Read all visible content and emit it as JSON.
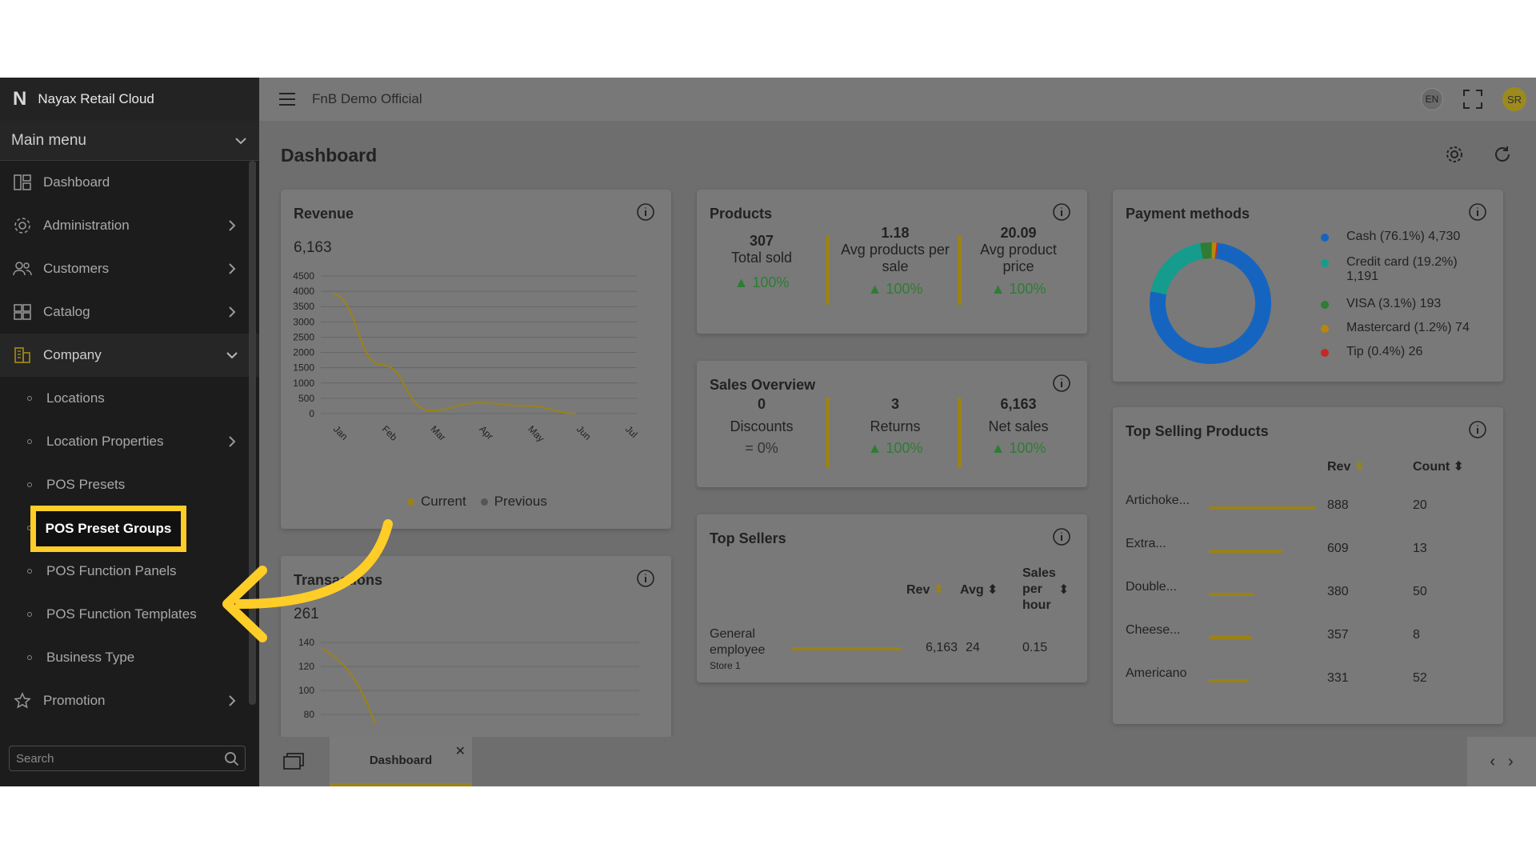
{
  "sidebar": {
    "app_name": "Nayax Retail Cloud",
    "main_menu": "Main menu",
    "items": [
      {
        "label": "Dashboard"
      },
      {
        "label": "Administration"
      },
      {
        "label": "Customers"
      },
      {
        "label": "Catalog"
      },
      {
        "label": "Company"
      }
    ],
    "company_sub": [
      {
        "label": "Locations"
      },
      {
        "label": "Location Properties"
      },
      {
        "label": "POS Presets"
      },
      {
        "label": "POS Preset Groups"
      },
      {
        "label": "POS Function Panels"
      },
      {
        "label": "POS Function Templates"
      },
      {
        "label": "Business Type"
      }
    ],
    "promotion": "Promotion",
    "search_placeholder": "Search"
  },
  "topbar": {
    "title": "FnB Demo Official",
    "lang": "EN",
    "avatar": "SR"
  },
  "page": {
    "title": "Dashboard"
  },
  "revenue": {
    "title": "Revenue",
    "total": "6,163",
    "legend_current": "Current",
    "legend_previous": "Previous",
    "yticks": [
      "4500",
      "4000",
      "3500",
      "3000",
      "2500",
      "2000",
      "1500",
      "1000",
      "500",
      "0"
    ],
    "xticks": [
      "Jan",
      "Feb",
      "Mar",
      "Apr",
      "May",
      "Jun",
      "Jul"
    ]
  },
  "chart_data": {
    "type": "line",
    "x": [
      "Jan",
      "Feb",
      "Mar",
      "Apr",
      "May",
      "Jun",
      "Jul"
    ],
    "series": [
      {
        "name": "Current",
        "values": [
          3900,
          1600,
          100,
          350,
          250,
          0,
          null
        ]
      }
    ],
    "ylim": [
      0,
      4500
    ]
  },
  "transactions": {
    "title": "Transactions",
    "total": "261",
    "yticks": [
      "140",
      "120",
      "100",
      "80"
    ]
  },
  "products": {
    "title": "Products",
    "kpis": [
      {
        "value": "307",
        "label": "Total sold",
        "pct": "100%"
      },
      {
        "value": "1.18",
        "label": "Avg products per sale",
        "pct": "100%"
      },
      {
        "value": "20.09",
        "label": "Avg product price",
        "pct": "100%"
      }
    ]
  },
  "sales": {
    "title": "Sales Overview",
    "kpis": [
      {
        "value": "0",
        "label": "Discounts",
        "pct": "0%"
      },
      {
        "value": "3",
        "label": "Returns",
        "pct": "100%"
      },
      {
        "value": "6,163",
        "label": "Net sales",
        "pct": "100%"
      }
    ]
  },
  "top_sellers": {
    "title": "Top Sellers",
    "headers": {
      "rev": "Rev",
      "avg": "Avg",
      "sph": "Sales per hour"
    },
    "rows": [
      {
        "name": "General employee",
        "store": "Store 1",
        "rev": "6,163",
        "avg": "24",
        "sph": "0.15"
      }
    ]
  },
  "payment": {
    "title": "Payment methods",
    "items": [
      {
        "label": "Cash (76.1%) 4,730",
        "color": "#1565c0",
        "share": 76.1
      },
      {
        "label": "Credit card (19.2%) 1,191",
        "color": "#159c8c",
        "share": 19.2
      },
      {
        "label": "VISA (3.1%) 193",
        "color": "#2e7d32",
        "share": 3.1
      },
      {
        "label": "Mastercard (1.2%) 74",
        "color": "#b8860b",
        "share": 1.2
      },
      {
        "label": "Tip (0.4%) 26",
        "color": "#c62828",
        "share": 0.4
      }
    ]
  },
  "top_products": {
    "title": "Top Selling Products",
    "headers": {
      "rev": "Rev",
      "count": "Count"
    },
    "rows": [
      {
        "name": "Artichoke...",
        "rev": "888",
        "count": "20",
        "share": 1.0
      },
      {
        "name": "Extra...",
        "rev": "609",
        "count": "13",
        "share": 0.686
      },
      {
        "name": "Double...",
        "rev": "380",
        "count": "50",
        "share": 0.428
      },
      {
        "name": "Cheese...",
        "rev": "357",
        "count": "8",
        "share": 0.402
      },
      {
        "name": "Americano",
        "rev": "331",
        "count": "52",
        "share": 0.373
      }
    ]
  },
  "bottom": {
    "tab_label": "Dashboard"
  }
}
